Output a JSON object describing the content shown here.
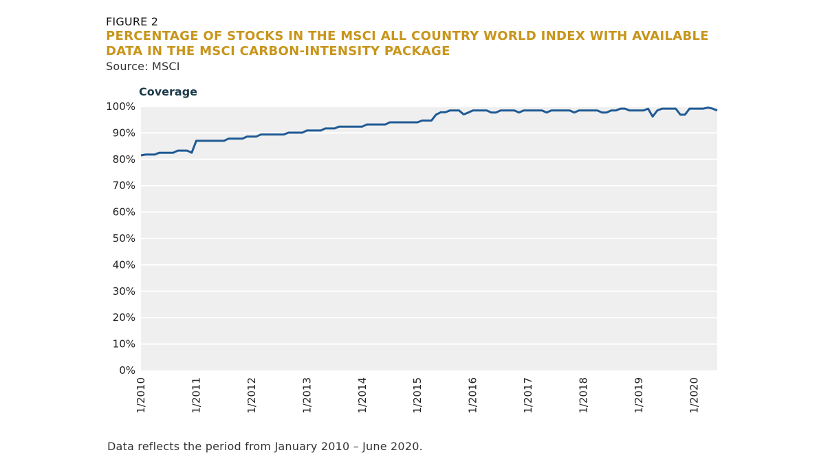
{
  "figure": {
    "label": "FIGURE 2",
    "title": "PERCENTAGE OF STOCKS IN THE MSCI ALL COUNTRY WORLD INDEX WITH AVAILABLE DATA IN THE MSCI CARBON-INTENSITY PACKAGE",
    "source": "Source: MSCI",
    "note": "Data reflects the period from January 2010 – June 2020."
  },
  "colors": {
    "line": "#1f5a94",
    "plot_bg": "#efefef",
    "grid": "#ffffff",
    "title": "#c8951b"
  },
  "chart_data": {
    "type": "line",
    "title": "",
    "xlabel": "",
    "ylabel": "Coverage",
    "ylim": [
      0,
      100
    ],
    "yticks": [
      0,
      10,
      20,
      30,
      40,
      50,
      60,
      70,
      80,
      90,
      100
    ],
    "ytick_labels": [
      "0%",
      "10%",
      "20%",
      "30%",
      "40%",
      "50%",
      "60%",
      "70%",
      "80%",
      "90%",
      "100%"
    ],
    "xlim": [
      2010.0,
      2020.4167
    ],
    "xticks": [
      2010,
      2011,
      2012,
      2013,
      2014,
      2015,
      2016,
      2017,
      2018,
      2019,
      2020
    ],
    "xtick_labels": [
      "1/2010",
      "1/2011",
      "1/2012",
      "1/2013",
      "1/2014",
      "1/2015",
      "1/2016",
      "1/2017",
      "1/2018",
      "1/2019",
      "1/2020"
    ],
    "grid": true,
    "series": [
      {
        "name": "Coverage",
        "x": [
          2010.0,
          2010.083,
          2010.167,
          2010.25,
          2010.333,
          2010.417,
          2010.5,
          2010.583,
          2010.667,
          2010.75,
          2010.833,
          2010.917,
          2011.0,
          2011.083,
          2011.167,
          2011.25,
          2011.333,
          2011.417,
          2011.5,
          2011.583,
          2011.667,
          2011.75,
          2011.833,
          2011.917,
          2012.0,
          2012.083,
          2012.167,
          2012.25,
          2012.333,
          2012.417,
          2012.5,
          2012.583,
          2012.667,
          2012.75,
          2012.833,
          2012.917,
          2013.0,
          2013.083,
          2013.167,
          2013.25,
          2013.333,
          2013.417,
          2013.5,
          2013.583,
          2013.667,
          2013.75,
          2013.833,
          2013.917,
          2014.0,
          2014.083,
          2014.167,
          2014.25,
          2014.333,
          2014.417,
          2014.5,
          2014.583,
          2014.667,
          2014.75,
          2014.833,
          2014.917,
          2015.0,
          2015.083,
          2015.167,
          2015.25,
          2015.333,
          2015.417,
          2015.5,
          2015.583,
          2015.667,
          2015.75,
          2015.833,
          2015.917,
          2016.0,
          2016.083,
          2016.167,
          2016.25,
          2016.333,
          2016.417,
          2016.5,
          2016.583,
          2016.667,
          2016.75,
          2016.833,
          2016.917,
          2017.0,
          2017.083,
          2017.167,
          2017.25,
          2017.333,
          2017.417,
          2017.5,
          2017.583,
          2017.667,
          2017.75,
          2017.833,
          2017.917,
          2018.0,
          2018.083,
          2018.167,
          2018.25,
          2018.333,
          2018.417,
          2018.5,
          2018.583,
          2018.667,
          2018.75,
          2018.833,
          2018.917,
          2019.0,
          2019.083,
          2019.167,
          2019.25,
          2019.333,
          2019.417,
          2019.5,
          2019.583,
          2019.667,
          2019.75,
          2019.833,
          2019.917,
          2020.0,
          2020.083,
          2020.167,
          2020.25,
          2020.333,
          2020.417
        ],
        "values": [
          81.5,
          81.8,
          81.8,
          81.8,
          82.5,
          82.5,
          82.5,
          82.5,
          83.3,
          83.3,
          83.3,
          82.5,
          87.0,
          87.0,
          87.0,
          87.0,
          87.0,
          87.0,
          87.0,
          87.8,
          87.8,
          87.8,
          87.8,
          88.6,
          88.6,
          88.6,
          89.4,
          89.4,
          89.4,
          89.4,
          89.4,
          89.4,
          90.1,
          90.1,
          90.1,
          90.1,
          90.9,
          90.9,
          90.9,
          90.9,
          91.7,
          91.7,
          91.7,
          92.4,
          92.4,
          92.4,
          92.4,
          92.4,
          92.4,
          93.2,
          93.2,
          93.2,
          93.2,
          93.2,
          94.0,
          94.0,
          94.0,
          94.0,
          94.0,
          94.0,
          94.0,
          94.7,
          94.7,
          94.7,
          96.9,
          97.8,
          97.8,
          98.5,
          98.5,
          98.5,
          97.0,
          97.7,
          98.5,
          98.5,
          98.5,
          98.5,
          97.7,
          97.7,
          98.5,
          98.5,
          98.5,
          98.5,
          97.7,
          98.5,
          98.5,
          98.5,
          98.5,
          98.5,
          97.7,
          98.5,
          98.5,
          98.5,
          98.5,
          98.5,
          97.7,
          98.5,
          98.5,
          98.5,
          98.5,
          98.5,
          97.7,
          97.7,
          98.5,
          98.5,
          99.2,
          99.2,
          98.5,
          98.5,
          98.5,
          98.5,
          99.2,
          96.2,
          98.5,
          99.2,
          99.2,
          99.2,
          99.2,
          96.9,
          96.9,
          99.2,
          99.2,
          99.2,
          99.2,
          99.6,
          99.2,
          98.5
        ]
      }
    ]
  }
}
